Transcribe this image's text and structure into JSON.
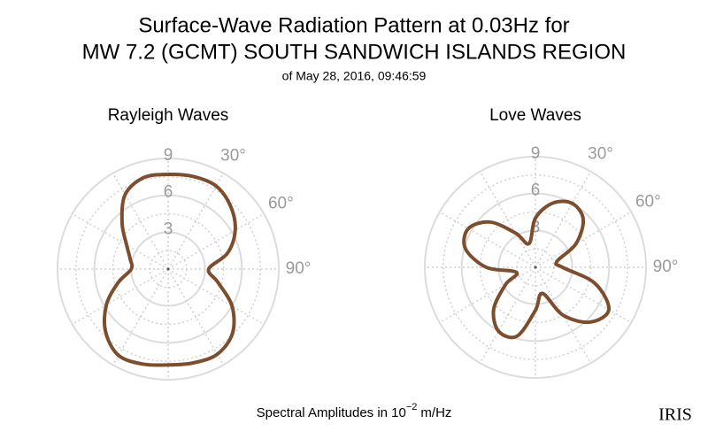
{
  "title": [
    "Surface-Wave Radiation Pattern at 0.03Hz for",
    "MW 7.2 (GCMT) SOUTH SANDWICH ISLANDS REGION"
  ],
  "subtitle": "of May 28, 2016, 09:46:59",
  "footer": {
    "text": "Spectral Amplitudes in 10",
    "exponent": "−2",
    "unit": "m/Hz"
  },
  "logo": "IRIS",
  "chart_data": [
    {
      "type": "polar",
      "title": "Rayleigh Waves",
      "color": "#7d4e2e",
      "theta": [
        0,
        15,
        30,
        45,
        60,
        75,
        90,
        105,
        120,
        135,
        150,
        165,
        180,
        195,
        210,
        225,
        240,
        255,
        270,
        285,
        300,
        315,
        330,
        345
      ],
      "values": [
        7.7,
        7.8,
        7.8,
        7.2,
        6.3,
        5.0,
        3.3,
        4.2,
        6.0,
        7.4,
        8.0,
        7.9,
        7.8,
        8.0,
        8.1,
        7.2,
        5.8,
        4.2,
        3.0,
        3.2,
        3.9,
        5.3,
        7.0,
        7.7
      ],
      "rlim": [
        0,
        9
      ],
      "rticks": [
        3,
        6,
        9
      ],
      "thetaticks": [
        {
          "value": 30,
          "label": "30°"
        },
        {
          "value": 60,
          "label": "60°"
        },
        {
          "value": 90,
          "label": "90°"
        }
      ],
      "grid": true
    },
    {
      "type": "polar",
      "title": "Love Waves",
      "color": "#7d4e2e",
      "theta": [
        0,
        15,
        30,
        45,
        60,
        75,
        90,
        105,
        120,
        135,
        150,
        165,
        180,
        195,
        210,
        225,
        240,
        255,
        270,
        285,
        300,
        315,
        330,
        345
      ],
      "values": [
        4.0,
        5.4,
        6.0,
        5.5,
        3.8,
        1.8,
        2.2,
        5.0,
        6.9,
        6.3,
        4.5,
        2.2,
        3.5,
        5.8,
        6.0,
        4.8,
        2.8,
        1.6,
        4.0,
        5.9,
        6.3,
        5.2,
        3.2,
        2.0
      ],
      "rlim": [
        0,
        9
      ],
      "rticks": [
        3,
        6,
        9
      ],
      "thetaticks": [
        {
          "value": 30,
          "label": "30°"
        },
        {
          "value": 60,
          "label": "60°"
        },
        {
          "value": 90,
          "label": "90°"
        }
      ],
      "grid": true
    }
  ]
}
